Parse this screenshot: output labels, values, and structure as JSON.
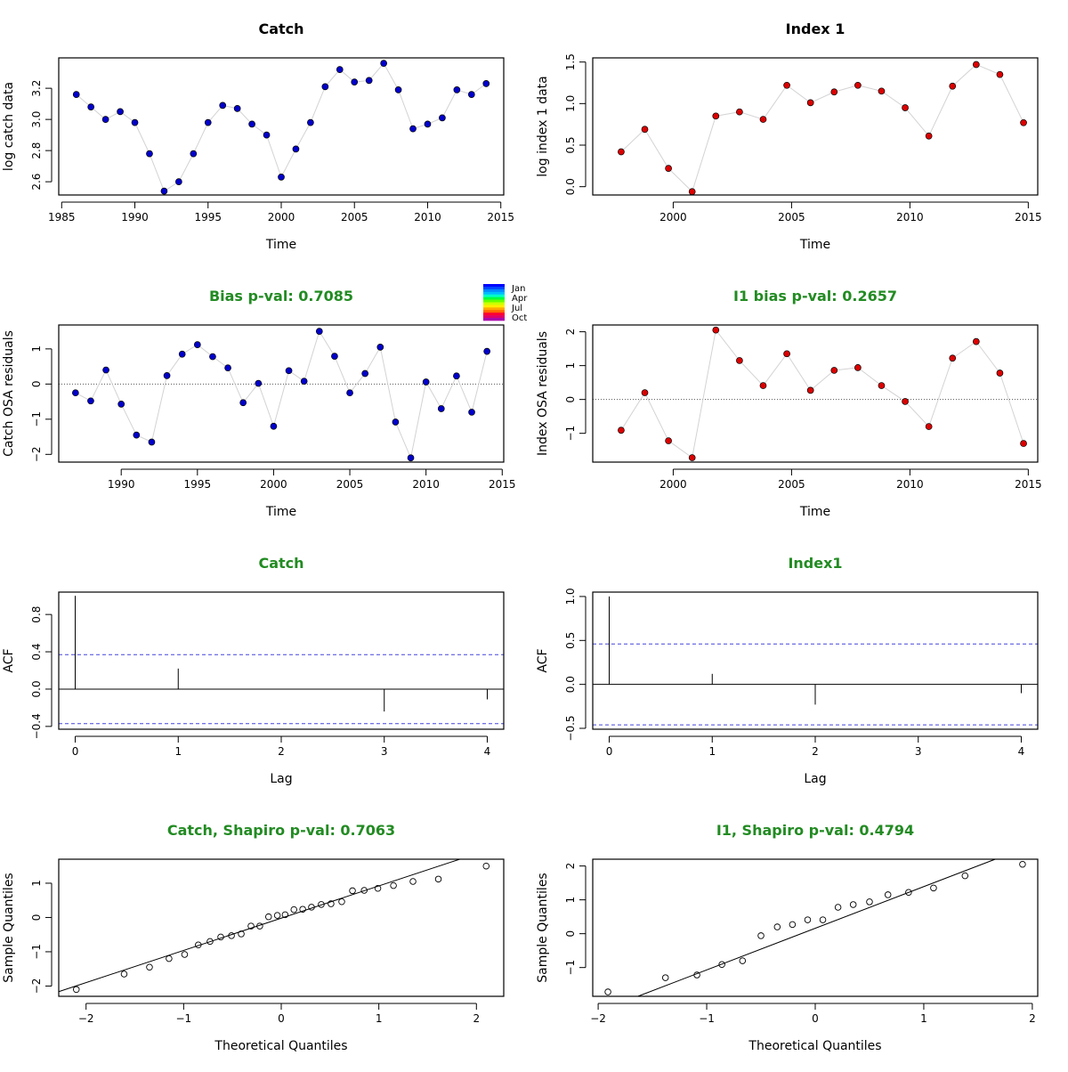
{
  "colors": {
    "catch_point": "#0000cc",
    "index_point": "#dd0000",
    "title_green": "#228b22",
    "title_black": "#000000",
    "connector": "#d3d3d3",
    "ci_line": "#4444dd"
  },
  "legend": {
    "labels": [
      "Jan",
      "Apr",
      "Jul",
      "Oct"
    ],
    "colors": [
      "#0000ff",
      "#0044ff",
      "#0088ff",
      "#00bbff",
      "#00ffcc",
      "#00ff44",
      "#66ff00",
      "#ccff00",
      "#ffee00",
      "#ffaa00",
      "#ff6600",
      "#ff0033",
      "#dd0066",
      "#aa00aa"
    ]
  },
  "chart_data": [
    {
      "id": "catch-data",
      "type": "line",
      "title": "Catch",
      "title_color": "black",
      "xlabel": "Time",
      "ylabel": "log catch data",
      "xlim": [
        1984.8,
        2015.2
      ],
      "ylim": [
        2.515,
        3.395
      ],
      "xticks": [
        1985,
        1990,
        1995,
        2000,
        2005,
        2010,
        2015
      ],
      "yticks": [
        2.6,
        2.8,
        3.0,
        3.2
      ],
      "point_color": "catch",
      "x": [
        1986,
        1987,
        1988,
        1989,
        1990,
        1991,
        1992,
        1993,
        1994,
        1995,
        1996,
        1997,
        1998,
        1999,
        2000,
        2001,
        2002,
        2003,
        2004,
        2005,
        2006,
        2007,
        2008,
        2009,
        2010,
        2011,
        2012,
        2013,
        2014
      ],
      "y": [
        3.16,
        3.08,
        3.0,
        3.05,
        2.98,
        2.78,
        2.54,
        2.6,
        2.78,
        2.98,
        3.09,
        3.07,
        2.97,
        2.9,
        2.63,
        2.81,
        2.98,
        3.21,
        3.32,
        3.24,
        3.25,
        3.36,
        3.19,
        2.94,
        2.97,
        3.01,
        3.19,
        3.16,
        3.23
      ]
    },
    {
      "id": "index-data",
      "type": "line",
      "title": "Index 1",
      "title_color": "black",
      "xlabel": "Time",
      "ylabel": "log index 1 data",
      "xlim": [
        1996.6,
        2015.4
      ],
      "ylim": [
        -0.1,
        1.55
      ],
      "xticks": [
        2000,
        2005,
        2010,
        2015
      ],
      "yticks": [
        0.0,
        0.5,
        1.0,
        1.5
      ],
      "point_color": "index",
      "x": [
        1997.8,
        1998.8,
        1999.8,
        2000.8,
        2001.8,
        2002.8,
        2003.8,
        2004.8,
        2005.8,
        2006.8,
        2007.8,
        2008.8,
        2009.8,
        2010.8,
        2011.8,
        2012.8,
        2013.8,
        2014.8
      ],
      "y": [
        0.42,
        0.69,
        0.22,
        -0.06,
        0.85,
        0.9,
        0.81,
        1.22,
        1.01,
        1.14,
        1.22,
        1.15,
        0.95,
        0.61,
        1.21,
        1.47,
        1.35,
        0.77
      ]
    },
    {
      "id": "catch-resid",
      "type": "line",
      "title": "Bias p-val: 0.7085",
      "title_color": "green",
      "xlabel": "Time",
      "ylabel": "Catch OSA residuals",
      "xlim": [
        1985.9,
        2015.1
      ],
      "ylim": [
        -2.22,
        1.68
      ],
      "xticks": [
        1990,
        1995,
        2000,
        2005,
        2010,
        2015
      ],
      "yticks": [
        -2,
        -1,
        0,
        1
      ],
      "zero_line": true,
      "point_color": "catch",
      "x": [
        1987,
        1988,
        1989,
        1990,
        1991,
        1992,
        1993,
        1994,
        1995,
        1996,
        1997,
        1998,
        1999,
        2000,
        2001,
        2002,
        2003,
        2004,
        2005,
        2006,
        2007,
        2008,
        2009,
        2010,
        2011,
        2012,
        2013,
        2014
      ],
      "y": [
        -0.25,
        -0.48,
        0.4,
        -0.57,
        -1.45,
        -1.65,
        0.24,
        0.85,
        1.12,
        0.78,
        0.46,
        -0.53,
        0.02,
        -1.2,
        0.38,
        0.08,
        1.5,
        0.79,
        -0.25,
        0.3,
        1.05,
        -1.08,
        -2.1,
        0.06,
        -0.7,
        0.23,
        -0.8,
        0.93
      ]
    },
    {
      "id": "index-resid",
      "type": "line",
      "title": "I1 bias p-val: 0.2657",
      "title_color": "green",
      "xlabel": "Time",
      "ylabel": "Index OSA residuals",
      "xlim": [
        1996.6,
        2015.4
      ],
      "ylim": [
        -1.85,
        2.2
      ],
      "xticks": [
        2000,
        2005,
        2010,
        2015
      ],
      "yticks": [
        -1,
        0,
        1,
        2
      ],
      "zero_line": true,
      "point_color": "index",
      "x": [
        1997.8,
        1998.8,
        1999.8,
        2000.8,
        2001.8,
        2002.8,
        2003.8,
        2004.8,
        2005.8,
        2006.8,
        2007.8,
        2008.8,
        2009.8,
        2010.8,
        2011.8,
        2012.8,
        2013.8,
        2014.8
      ],
      "y": [
        -0.91,
        0.2,
        -1.22,
        -1.72,
        2.05,
        1.15,
        0.41,
        1.35,
        0.27,
        0.86,
        0.94,
        0.41,
        -0.06,
        -0.8,
        1.22,
        1.71,
        0.78,
        -1.3
      ]
    },
    {
      "id": "catch-acf",
      "type": "bar",
      "title": "Catch",
      "title_color": "green",
      "xlabel": "Lag",
      "ylabel": "ACF",
      "xlim": [
        -0.16,
        4.16
      ],
      "ylim": [
        -0.43,
        1.04
      ],
      "xticks": [
        0,
        1,
        2,
        3,
        4
      ],
      "yticks": [
        -0.4,
        0.0,
        0.4,
        0.8
      ],
      "ci": 0.37,
      "lags": [
        0,
        1,
        2,
        3,
        4
      ],
      "values": [
        1.0,
        0.22,
        0.0,
        -0.24,
        -0.11
      ]
    },
    {
      "id": "index-acf",
      "type": "bar",
      "title": "Index1",
      "title_color": "green",
      "xlabel": "Lag",
      "ylabel": "ACF",
      "xlim": [
        -0.16,
        4.16
      ],
      "ylim": [
        -0.51,
        1.05
      ],
      "xticks": [
        0,
        1,
        2,
        3,
        4
      ],
      "yticks": [
        -0.5,
        0.0,
        0.5,
        1.0
      ],
      "ci": 0.46,
      "lags": [
        0,
        1,
        2,
        3,
        4
      ],
      "values": [
        1.0,
        0.12,
        -0.23,
        0.0,
        -0.1
      ]
    },
    {
      "id": "catch-qq",
      "type": "scatter",
      "title": "Catch, Shapiro p-val: 0.7063",
      "title_color": "green",
      "xlabel": "Theoretical Quantiles",
      "ylabel": "Sample Quantiles",
      "xlim": [
        -2.28,
        2.28
      ],
      "ylim": [
        -2.3,
        1.7
      ],
      "xticks": [
        -2,
        -1,
        0,
        1,
        2
      ],
      "yticks": [
        -2,
        -1,
        0,
        1
      ],
      "qq_line": [
        -0.02,
        0.94
      ],
      "x": [
        -2.1,
        -1.61,
        -1.35,
        -1.15,
        -0.99,
        -0.85,
        -0.73,
        -0.62,
        -0.51,
        -0.41,
        -0.31,
        -0.22,
        -0.13,
        -0.04,
        0.04,
        0.13,
        0.22,
        0.31,
        0.41,
        0.51,
        0.62,
        0.73,
        0.85,
        0.99,
        1.15,
        1.35,
        1.61,
        2.1
      ],
      "y": [
        -2.1,
        -1.65,
        -1.45,
        -1.2,
        -1.08,
        -0.8,
        -0.7,
        -0.57,
        -0.53,
        -0.48,
        -0.25,
        -0.25,
        0.02,
        0.06,
        0.08,
        0.23,
        0.24,
        0.3,
        0.38,
        0.4,
        0.46,
        0.78,
        0.79,
        0.85,
        0.93,
        1.05,
        1.12,
        1.5
      ]
    },
    {
      "id": "index-qq",
      "type": "scatter",
      "title": "I1, Shapiro p-val: 0.4794",
      "title_color": "green",
      "xlabel": "Theoretical Quantiles",
      "ylabel": "Sample Quantiles",
      "xlim": [
        -2.05,
        2.05
      ],
      "ylim": [
        -1.85,
        2.2
      ],
      "xticks": [
        -2,
        -1,
        0,
        1,
        2
      ],
      "yticks": [
        -1,
        0,
        1,
        2
      ],
      "qq_line": [
        0.16,
        1.23
      ],
      "x": [
        -1.91,
        -1.38,
        -1.09,
        -0.86,
        -0.67,
        -0.5,
        -0.35,
        -0.21,
        -0.07,
        0.07,
        0.21,
        0.35,
        0.5,
        0.67,
        0.86,
        1.09,
        1.38,
        1.91
      ],
      "y": [
        -1.72,
        -1.3,
        -1.22,
        -0.91,
        -0.8,
        -0.06,
        0.2,
        0.27,
        0.41,
        0.41,
        0.78,
        0.86,
        0.94,
        1.15,
        1.22,
        1.35,
        1.71,
        2.05
      ]
    }
  ]
}
